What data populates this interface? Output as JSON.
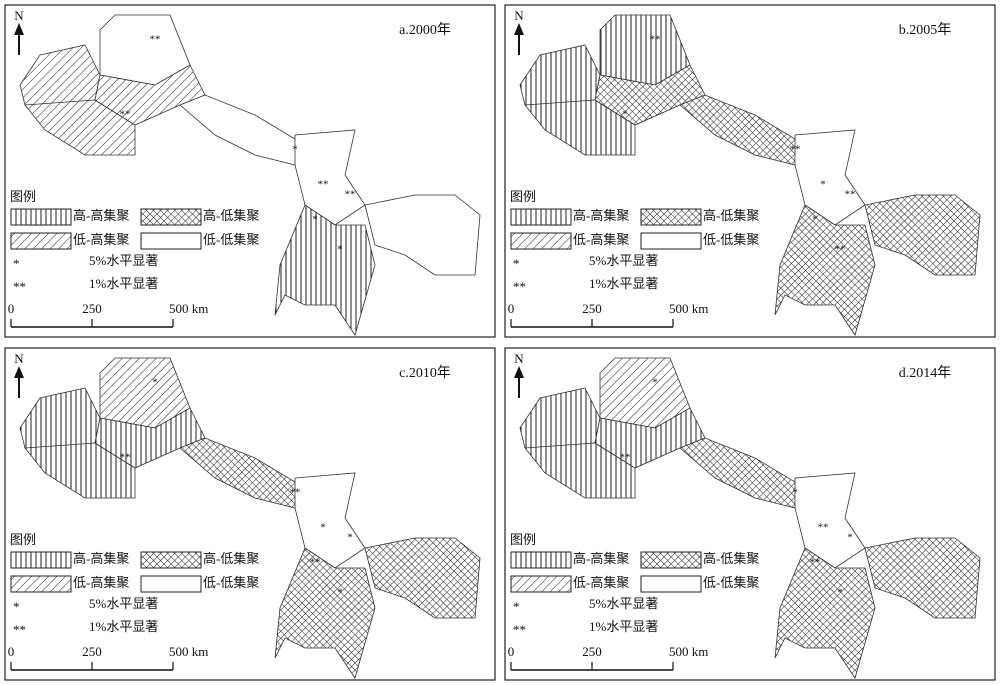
{
  "panels": [
    {
      "title": "a.2000年",
      "north": "N",
      "legend": {
        "title": "图例",
        "items": [
          {
            "label": "高-高集聚",
            "pattern": "vertical"
          },
          {
            "label": "高-低集聚",
            "pattern": "cross"
          },
          {
            "label": "低-高集聚",
            "pattern": "diagonal"
          },
          {
            "label": "低-低集聚",
            "pattern": "none"
          }
        ],
        "significance": [
          {
            "symbol": "*",
            "label": "5%水平显著"
          },
          {
            "symbol": "**",
            "label": "1%水平显著"
          }
        ]
      },
      "scale": [
        "0",
        "250",
        "500 km"
      ],
      "markers": [
        "**",
        "*",
        "**",
        "**",
        "*",
        "*",
        "**"
      ]
    },
    {
      "title": "b.2005年",
      "north": "N",
      "legend": {
        "title": "图例",
        "items": [
          {
            "label": "高-高集聚",
            "pattern": "vertical"
          },
          {
            "label": "高-低集聚",
            "pattern": "cross"
          },
          {
            "label": "低-高集聚",
            "pattern": "diagonal"
          },
          {
            "label": "低-低集聚",
            "pattern": "none"
          }
        ],
        "significance": [
          {
            "symbol": "*",
            "label": "5%水平显著"
          },
          {
            "symbol": "**",
            "label": "1%水平显著"
          }
        ]
      },
      "scale": [
        "0",
        "250",
        "500 km"
      ],
      "markers": [
        "**",
        "**",
        "*",
        "**",
        "*",
        "**",
        "*"
      ]
    },
    {
      "title": "c.2010年",
      "north": "N",
      "legend": {
        "title": "图例",
        "items": [
          {
            "label": "高-高集聚",
            "pattern": "vertical"
          },
          {
            "label": "高-低集聚",
            "pattern": "cross"
          },
          {
            "label": "低-高集聚",
            "pattern": "diagonal"
          },
          {
            "label": "低-低集聚",
            "pattern": "none"
          }
        ],
        "significance": [
          {
            "symbol": "*",
            "label": "5%水平显著"
          },
          {
            "symbol": "**",
            "label": "1%水平显著"
          }
        ]
      },
      "scale": [
        "0",
        "250",
        "500 km"
      ],
      "markers": [
        "*",
        "**",
        "*",
        "*",
        "**",
        "*",
        "**"
      ]
    },
    {
      "title": "d.2014年",
      "north": "N",
      "legend": {
        "title": "图例",
        "items": [
          {
            "label": "高-高集聚",
            "pattern": "vertical"
          },
          {
            "label": "高-低集聚",
            "pattern": "cross"
          },
          {
            "label": "低-高集聚",
            "pattern": "diagonal"
          },
          {
            "label": "低-低集聚",
            "pattern": "none"
          }
        ],
        "significance": [
          {
            "symbol": "*",
            "label": "5%水平显著"
          },
          {
            "symbol": "**",
            "label": "1%水平显著"
          }
        ]
      },
      "scale": [
        "0",
        "250",
        "500 km"
      ],
      "markers": [
        "*",
        "*",
        "**",
        "*",
        "**",
        "*",
        "**"
      ]
    }
  ]
}
